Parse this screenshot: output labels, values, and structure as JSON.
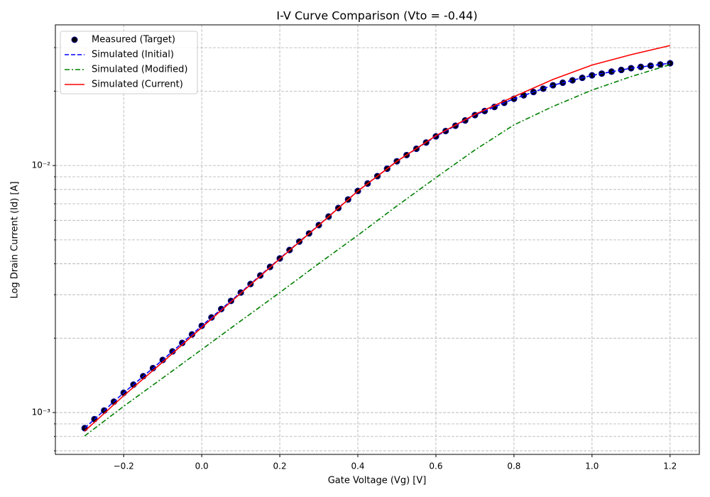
{
  "chart_data": {
    "type": "line",
    "title": "I-V Curve Comparison (Vto = -0.44)",
    "xlabel": "Gate Voltage (Vg) [V]",
    "ylabel": "Log Drain Current (Id) [A]",
    "yscale": "log",
    "grid": true,
    "legend": "upper left",
    "xlim": [
      -0.375,
      1.275
    ],
    "ylim": [
      0.000677,
      0.0371
    ],
    "xticks": [
      {
        "value": -0.2,
        "label": "−0.2"
      },
      {
        "value": 0,
        "label": "0.0"
      },
      {
        "value": 0.2,
        "label": "0.2"
      },
      {
        "value": 0.4,
        "label": "0.4"
      },
      {
        "value": 0.6,
        "label": "0.6"
      },
      {
        "value": 0.8,
        "label": "0.8"
      },
      {
        "value": 1.0,
        "label": "1.0"
      },
      {
        "value": 1.2,
        "label": "1.2"
      }
    ],
    "yticks": [
      {
        "value": 0.001,
        "label": "10⁻³"
      },
      {
        "value": 0.01,
        "label": "10⁻²"
      }
    ],
    "yminorticks": [
      0.0007,
      0.0008,
      0.0009,
      0.002,
      0.003,
      0.004,
      0.005,
      0.006,
      0.007,
      0.008,
      0.009,
      0.02,
      0.03
    ],
    "series": [
      {
        "name": "Measured (Target)",
        "color": "#000000",
        "edgecolor": "#00008b",
        "style": "marker",
        "x": [
          -0.3,
          -0.275,
          -0.25,
          -0.225,
          -0.2,
          -0.175,
          -0.15,
          -0.125,
          -0.1,
          -0.075,
          -0.05,
          -0.025,
          0,
          0.025,
          0.05,
          0.075,
          0.1,
          0.125,
          0.15,
          0.175,
          0.2,
          0.225,
          0.25,
          0.275,
          0.3,
          0.325,
          0.35,
          0.375,
          0.4,
          0.425,
          0.45,
          0.475,
          0.5,
          0.525,
          0.55,
          0.575,
          0.6,
          0.625,
          0.65,
          0.675,
          0.7,
          0.725,
          0.75,
          0.775,
          0.8,
          0.825,
          0.85,
          0.875,
          0.9,
          0.925,
          0.95,
          0.975,
          1.0,
          1.025,
          1.05,
          1.075,
          1.1,
          1.125,
          1.15,
          1.175,
          1.2
        ],
        "values": [
          0.000865,
          0.00094,
          0.001019,
          0.001107,
          0.001202,
          0.001297,
          0.001403,
          0.001513,
          0.001633,
          0.001768,
          0.001914,
          0.002072,
          0.002244,
          0.002427,
          0.002624,
          0.002831,
          0.003062,
          0.003315,
          0.003589,
          0.003886,
          0.004207,
          0.00455,
          0.00492,
          0.005309,
          0.005741,
          0.006215,
          0.00673,
          0.007287,
          0.007889,
          0.008453,
          0.009057,
          0.009705,
          0.0104,
          0.01102,
          0.01169,
          0.01239,
          0.01312,
          0.01379,
          0.01449,
          0.01522,
          0.016,
          0.01662,
          0.01726,
          0.01793,
          0.01862,
          0.01923,
          0.01984,
          0.02046,
          0.02113,
          0.02163,
          0.02213,
          0.02265,
          0.02317,
          0.02355,
          0.02399,
          0.02438,
          0.02477,
          0.02506,
          0.02535,
          0.02564,
          0.02594
        ]
      },
      {
        "name": "Simulated (Initial)",
        "color": "#0000ff",
        "style": "dashed",
        "x": [
          -0.3,
          -0.2,
          -0.1,
          0,
          0.1,
          0.2,
          0.3,
          0.4,
          0.5,
          0.6,
          0.7,
          0.8,
          0.9,
          1.0,
          1.1,
          1.2
        ],
        "values": [
          0.000865,
          0.001202,
          0.001633,
          0.002244,
          0.003062,
          0.004207,
          0.005741,
          0.007889,
          0.0104,
          0.01312,
          0.016,
          0.01862,
          0.02113,
          0.02317,
          0.02477,
          0.02594
        ]
      },
      {
        "name": "Simulated (Modified)",
        "color": "#008000",
        "style": "dashdot",
        "x": [
          -0.3,
          -0.2,
          -0.1,
          0,
          0.1,
          0.2,
          0.3,
          0.4,
          0.5,
          0.6,
          0.7,
          0.8,
          0.9,
          1.0,
          1.1,
          1.2
        ],
        "values": [
          0.000804,
          0.00106,
          0.00138,
          0.0018,
          0.00235,
          0.00306,
          0.00401,
          0.00522,
          0.00686,
          0.00893,
          0.01156,
          0.0146,
          0.01734,
          0.0202,
          0.0229,
          0.0256
        ]
      },
      {
        "name": "Simulated (Current)",
        "color": "#ff0000",
        "style": "solid",
        "x": [
          -0.3,
          -0.2,
          -0.1,
          0,
          0.1,
          0.2,
          0.3,
          0.4,
          0.5,
          0.6,
          0.7,
          0.8,
          0.9,
          1.0,
          1.1,
          1.2
        ],
        "values": [
          0.000841,
          0.00117,
          0.0016,
          0.00221,
          0.00304,
          0.00419,
          0.00573,
          0.00788,
          0.0104,
          0.0132,
          0.0161,
          0.019,
          0.0223,
          0.0255,
          0.0281,
          0.0306
        ]
      }
    ]
  }
}
